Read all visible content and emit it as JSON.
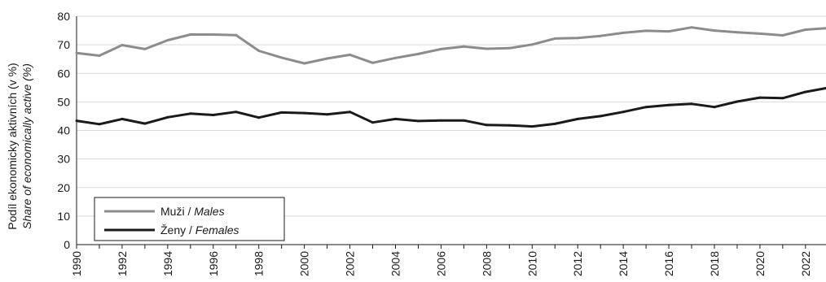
{
  "chart_data": {
    "type": "line",
    "ylabel_line1": "Podíl ekonomicky aktivních (v %)",
    "ylabel_line2": "Share of economically active (%)",
    "xlabel": "",
    "ylim": [
      0,
      80
    ],
    "y_ticks": [
      0,
      10,
      20,
      30,
      40,
      50,
      60,
      70,
      80
    ],
    "xlim": [
      1990,
      2022.9
    ],
    "x_ticks": [
      1990,
      1992,
      1994,
      1996,
      1998,
      2000,
      2002,
      2004,
      2006,
      2008,
      2010,
      2012,
      2014,
      2016,
      2018,
      2020,
      2022
    ],
    "x": [
      1990,
      1991,
      1992,
      1993,
      1994,
      1995,
      1996,
      1997,
      1998,
      1999,
      2000,
      2001,
      2002,
      2003,
      2004,
      2005,
      2006,
      2007,
      2008,
      2009,
      2010,
      2011,
      2012,
      2013,
      2014,
      2015,
      2016,
      2017,
      2018,
      2019,
      2020,
      2021,
      2022,
      2022.9
    ],
    "grid": "horizontal",
    "legend_position": "bottom-left",
    "series": [
      {
        "name_main": "Muži / ",
        "name_italic": "Males",
        "color": "#8c8c8c",
        "values": [
          67.1,
          66.2,
          69.9,
          68.5,
          71.6,
          73.6,
          73.6,
          73.4,
          67.9,
          65.5,
          63.5,
          65.2,
          66.5,
          63.7,
          65.4,
          66.8,
          68.5,
          69.4,
          68.6,
          68.8,
          70.1,
          72.2,
          72.4,
          73.1,
          74.2,
          74.9,
          74.7,
          76.1,
          75.0,
          74.4,
          73.9,
          73.3,
          75.3,
          75.8
        ]
      },
      {
        "name_main": "Ženy / ",
        "name_italic": "Females",
        "color": "#1a1a1a",
        "values": [
          43.4,
          42.2,
          44.0,
          42.4,
          44.6,
          45.9,
          45.4,
          46.5,
          44.5,
          46.3,
          46.1,
          45.6,
          46.5,
          42.8,
          44.0,
          43.3,
          43.5,
          43.5,
          41.9,
          41.8,
          41.4,
          42.3,
          44.0,
          45.0,
          46.5,
          48.2,
          48.9,
          49.3,
          48.2,
          50.1,
          51.5,
          51.3,
          53.5,
          54.8
        ]
      }
    ]
  }
}
